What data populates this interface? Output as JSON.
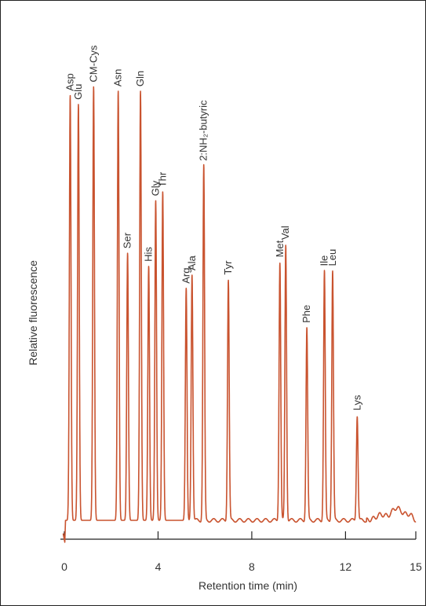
{
  "chart_data": {
    "type": "line",
    "title": "",
    "xlabel": "Retention time (min)",
    "ylabel": "Relative fluorescence",
    "xlim": [
      0,
      15
    ],
    "ylim": [
      0,
      100
    ],
    "xticks": [
      0,
      4,
      8,
      12,
      15
    ],
    "grid": false,
    "legend": "none",
    "colors": {
      "trace": "#c9532f",
      "axis": "#222222",
      "text": "#333333"
    },
    "peaks": [
      {
        "label": "Asp",
        "x": 0.25,
        "y": 97
      },
      {
        "label": "Glu",
        "x": 0.6,
        "y": 95
      },
      {
        "label": "CM-Cys",
        "x": 1.25,
        "y": 99
      },
      {
        "label": "Asn",
        "x": 2.3,
        "y": 98
      },
      {
        "label": "Ser",
        "x": 2.7,
        "y": 61
      },
      {
        "label": "Gln",
        "x": 3.25,
        "y": 98
      },
      {
        "label": "His",
        "x": 3.6,
        "y": 58
      },
      {
        "label": "Gly",
        "x": 3.9,
        "y": 73
      },
      {
        "label": "Thr",
        "x": 4.2,
        "y": 75
      },
      {
        "label": "Arg",
        "x": 5.2,
        "y": 53
      },
      {
        "label": "Ala",
        "x": 5.45,
        "y": 56
      },
      {
        "label": "2:NH₂-butyric",
        "x": 5.95,
        "y": 81
      },
      {
        "label": "Tyr",
        "x": 7.0,
        "y": 55
      },
      {
        "label": "Met",
        "x": 9.2,
        "y": 59
      },
      {
        "label": "Val",
        "x": 9.45,
        "y": 63
      },
      {
        "label": "Phe",
        "x": 10.35,
        "y": 44
      },
      {
        "label": "Ile",
        "x": 11.1,
        "y": 57
      },
      {
        "label": "Leu",
        "x": 11.45,
        "y": 57
      },
      {
        "label": "Lys",
        "x": 12.5,
        "y": 24
      }
    ]
  }
}
